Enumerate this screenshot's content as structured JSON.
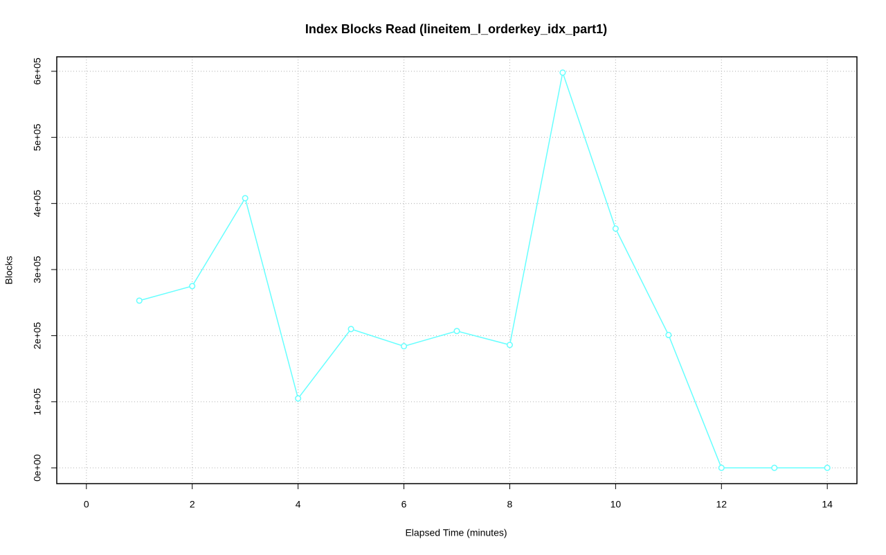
{
  "chart_data": {
    "type": "line",
    "title": "Index Blocks Read (lineitem_l_orderkey_idx_part1)",
    "xlabel": "Elapsed Time (minutes)",
    "ylabel": "Blocks",
    "x": [
      1,
      2,
      3,
      4,
      5,
      6,
      7,
      8,
      9,
      10,
      11,
      12,
      13,
      14
    ],
    "values": [
      253000,
      275000,
      408000,
      105000,
      210000,
      184000,
      207000,
      186000,
      598000,
      362000,
      201000,
      0,
      0,
      0
    ],
    "color": "#66ffff",
    "xlim": [
      -0.56,
      14.56
    ],
    "ylim": [
      -23900,
      621900
    ],
    "xticks": [
      0,
      2,
      4,
      6,
      8,
      10,
      12,
      14
    ],
    "yticks": [
      {
        "value": 0,
        "label": "0e+00"
      },
      {
        "value": 100000,
        "label": "1e+05"
      },
      {
        "value": 200000,
        "label": "2e+05"
      },
      {
        "value": 300000,
        "label": "3e+05"
      },
      {
        "value": 400000,
        "label": "4e+05"
      },
      {
        "value": 500000,
        "label": "5e+05"
      },
      {
        "value": 600000,
        "label": "6e+05"
      }
    ],
    "grid": true
  }
}
